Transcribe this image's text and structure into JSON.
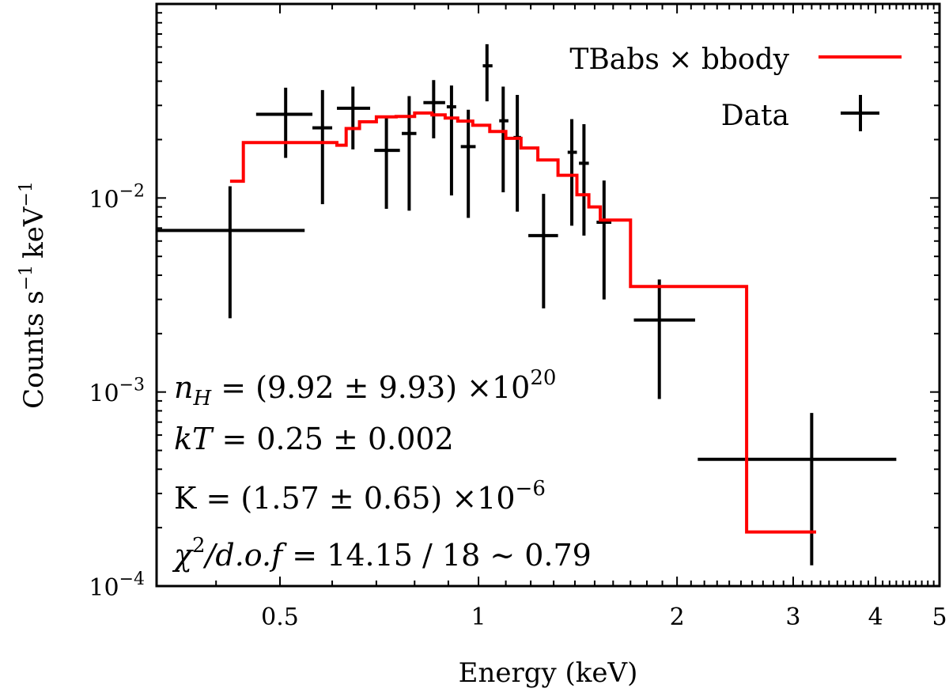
{
  "chart_data": {
    "type": "scatter",
    "xlabel": "Energy (keV)",
    "ylabel": "Counts s",
    "ylabel_sup1": "−1",
    "ylabel_unit": "keV",
    "ylabel_sup2": "−1",
    "xscale": "log",
    "yscale": "log",
    "xlim": [
      0.325,
      5.0
    ],
    "ylim": [
      0.0001,
      0.1
    ],
    "grid": false,
    "legend_position": "top-right",
    "x_ticks": [
      {
        "value": 0.5,
        "label": "0.5"
      },
      {
        "value": 1,
        "label": "1"
      },
      {
        "value": 2,
        "label": "2"
      },
      {
        "value": 3,
        "label": "3"
      },
      {
        "value": 4,
        "label": "4"
      },
      {
        "value": 5,
        "label": "5"
      }
    ],
    "y_ticks": [
      {
        "value": 0.01,
        "base": "10",
        "exp": "−2"
      },
      {
        "value": 0.001,
        "base": "10",
        "exp": "−3"
      },
      {
        "value": 0.0001,
        "base": "10",
        "exp": "−4"
      }
    ],
    "series": [
      {
        "name": "TBabs × bbody",
        "kind": "step-line",
        "color": "#ff0000",
        "edges": [
          0.42,
          0.44,
          0.61,
          0.63,
          0.66,
          0.7,
          0.75,
          0.8,
          0.85,
          0.89,
          0.93,
          0.98,
          1.04,
          1.1,
          1.16,
          1.23,
          1.32,
          1.41,
          1.47,
          1.53,
          1.7,
          2.55,
          3.25
        ],
        "values": [
          0.0122,
          0.0193,
          0.0187,
          0.0228,
          0.0247,
          0.0262,
          0.0263,
          0.0274,
          0.0268,
          0.0258,
          0.0249,
          0.0237,
          0.022,
          0.0203,
          0.0181,
          0.0157,
          0.0131,
          0.0104,
          0.009,
          0.0077,
          0.0035,
          0.00019
        ]
      },
      {
        "name": "Data",
        "kind": "errorbar",
        "color": "#000000",
        "points": [
          {
            "x": 0.42,
            "y": 0.0068,
            "xlo": 0.325,
            "xhi": 0.545,
            "ylo": 0.0024,
            "yhi": 0.0115
          },
          {
            "x": 0.51,
            "y": 0.027,
            "xlo": 0.46,
            "xhi": 0.56,
            "ylo": 0.0161,
            "yhi": 0.037
          },
          {
            "x": 0.58,
            "y": 0.023,
            "xlo": 0.56,
            "xhi": 0.6,
            "ylo": 0.0093,
            "yhi": 0.036
          },
          {
            "x": 0.645,
            "y": 0.029,
            "xlo": 0.61,
            "xhi": 0.685,
            "ylo": 0.0178,
            "yhi": 0.0375
          },
          {
            "x": 0.725,
            "y": 0.0176,
            "xlo": 0.695,
            "xhi": 0.76,
            "ylo": 0.0088,
            "yhi": 0.0265
          },
          {
            "x": 0.785,
            "y": 0.0215,
            "xlo": 0.765,
            "xhi": 0.805,
            "ylo": 0.0086,
            "yhi": 0.0335
          },
          {
            "x": 0.855,
            "y": 0.031,
            "xlo": 0.825,
            "xhi": 0.89,
            "ylo": 0.0203,
            "yhi": 0.0405
          },
          {
            "x": 0.91,
            "y": 0.0295,
            "xlo": 0.895,
            "xhi": 0.925,
            "ylo": 0.0103,
            "yhi": 0.038
          },
          {
            "x": 0.965,
            "y": 0.0184,
            "xlo": 0.94,
            "xhi": 0.99,
            "ylo": 0.0079,
            "yhi": 0.0285
          },
          {
            "x": 1.03,
            "y": 0.048,
            "xlo": 1.015,
            "xhi": 1.05,
            "ylo": 0.0315,
            "yhi": 0.062
          },
          {
            "x": 1.09,
            "y": 0.025,
            "xlo": 1.075,
            "xhi": 1.11,
            "ylo": 0.0107,
            "yhi": 0.0375
          },
          {
            "x": 1.145,
            "y": 0.0205,
            "xlo": 1.13,
            "xhi": 1.16,
            "ylo": 0.0085,
            "yhi": 0.034
          },
          {
            "x": 1.255,
            "y": 0.0064,
            "xlo": 1.19,
            "xhi": 1.32,
            "ylo": 0.0027,
            "yhi": 0.0105
          },
          {
            "x": 1.385,
            "y": 0.0172,
            "xlo": 1.365,
            "xhi": 1.41,
            "ylo": 0.0072,
            "yhi": 0.0255
          },
          {
            "x": 1.445,
            "y": 0.0151,
            "xlo": 1.42,
            "xhi": 1.47,
            "ylo": 0.0064,
            "yhi": 0.024
          },
          {
            "x": 1.55,
            "y": 0.0075,
            "xlo": 1.51,
            "xhi": 1.59,
            "ylo": 0.003,
            "yhi": 0.0123
          },
          {
            "x": 1.88,
            "y": 0.00235,
            "xlo": 1.72,
            "xhi": 2.13,
            "ylo": 0.00092,
            "yhi": 0.0038
          },
          {
            "x": 3.2,
            "y": 0.00045,
            "xlo": 2.15,
            "xhi": 4.3,
            "ylo": 0.000128,
            "yhi": 0.00078
          }
        ]
      }
    ],
    "annotations": [
      {
        "id": "nh",
        "var": "n",
        "sub": "H",
        "rest": " = (9.92 ± 9.93) ×10",
        "sup": "20"
      },
      {
        "id": "kt",
        "var": "kT",
        "rest": " = 0.25 ± 0.002"
      },
      {
        "id": "k",
        "var": "",
        "rest": "K = (1.57 ± 0.65) ×10",
        "sup": "−6"
      },
      {
        "id": "chi",
        "var": "χ",
        "sup_first": "2",
        "ital2": "/d.o.f",
        "rest": " = 14.15 / 18 ∼ 0.79"
      }
    ]
  }
}
